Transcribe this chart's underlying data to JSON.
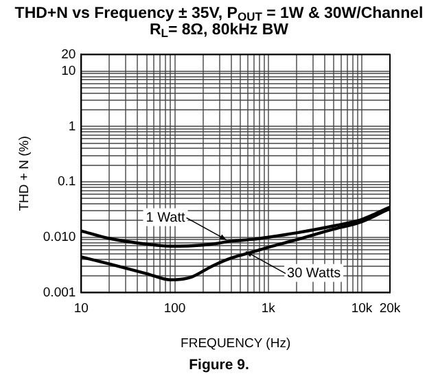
{
  "chart_data": {
    "type": "line",
    "title": "THD+N vs Frequency ± 35V, P$_{OUT}$ = 1W & 30W/Channel",
    "subtitle": "R$_{L}$= 8Ω, 80kHz BW",
    "xlabel": "FREQUENCY (Hz)",
    "ylabel": "THD + N (%)",
    "log": "xy",
    "grid": true,
    "legend": false,
    "marker": "none",
    "line_style": "solid",
    "x": [
      10,
      20,
      50,
      91,
      150,
      250,
      400,
      700,
      1000,
      2000,
      5000,
      10000,
      20000
    ],
    "series": [
      {
        "color": "#000000",
        "values": [
          0.013,
          0.0095,
          0.0075,
          0.0069,
          0.007,
          0.0075,
          0.0085,
          0.0092,
          0.01,
          0.012,
          0.016,
          0.021,
          0.035
        ]
      },
      {
        "color": "#000000",
        "values": [
          0.0044,
          0.0033,
          0.0022,
          0.0017,
          0.0019,
          0.003,
          0.0042,
          0.0055,
          0.0066,
          0.009,
          0.014,
          0.019,
          0.033
        ]
      }
    ],
    "xlim": [
      10,
      20000
    ],
    "ylim": [
      0.001,
      20
    ],
    "xticks": [
      10,
      {
        "value": 20,
        "label": null
      },
      {
        "value": 30,
        "label": null
      },
      {
        "value": 40,
        "label": null
      },
      {
        "value": 50,
        "label": null
      },
      {
        "value": 60,
        "label": null
      },
      {
        "value": 70,
        "label": null
      },
      {
        "value": 80,
        "label": null
      },
      {
        "value": 90,
        "label": null
      },
      100,
      {
        "value": 200,
        "label": null
      },
      {
        "value": 300,
        "label": null
      },
      {
        "value": 400,
        "label": null
      },
      {
        "value": 500,
        "label": null
      },
      {
        "value": 600,
        "label": null
      },
      {
        "value": 700,
        "label": null
      },
      {
        "value": 800,
        "label": null
      },
      {
        "value": 900,
        "label": null
      },
      {
        "value": 1000,
        "label": "1k"
      },
      {
        "value": 2000,
        "label": null
      },
      {
        "value": 3000,
        "label": null
      },
      {
        "value": 4000,
        "label": null
      },
      {
        "value": 5000,
        "label": null
      },
      {
        "value": 6000,
        "label": null
      },
      {
        "value": 7000,
        "label": null
      },
      {
        "value": 8000,
        "label": null
      },
      {
        "value": 9000,
        "label": null
      },
      {
        "value": 10000,
        "label": "10k"
      },
      {
        "value": 20000,
        "label": "20k"
      }
    ],
    "yticks": [
      0.001,
      {
        "value": 0.002,
        "label": null
      },
      {
        "value": 0.003,
        "label": null
      },
      {
        "value": 0.004,
        "label": null
      },
      {
        "value": 0.005,
        "label": null
      },
      {
        "value": 0.006,
        "label": null
      },
      {
        "value": 0.007,
        "label": null
      },
      {
        "value": 0.008,
        "label": null
      },
      {
        "value": 0.009,
        "label": null
      },
      {
        "value": 0.01,
        "label": "0.010"
      },
      {
        "value": 0.02,
        "label": null
      },
      {
        "value": 0.03,
        "label": null
      },
      {
        "value": 0.04,
        "label": null
      },
      {
        "value": 0.05,
        "label": null
      },
      {
        "value": 0.06,
        "label": null
      },
      {
        "value": 0.07,
        "label": null
      },
      {
        "value": 0.08,
        "label": null
      },
      {
        "value": 0.09,
        "label": null
      },
      0.1,
      {
        "value": 0.2,
        "label": null
      },
      {
        "value": 0.3,
        "label": null
      },
      {
        "value": 0.4,
        "label": null
      },
      {
        "value": 0.5,
        "label": null
      },
      {
        "value": 0.6,
        "label": null
      },
      {
        "value": 0.7,
        "label": null
      },
      {
        "value": 0.8,
        "label": null
      },
      {
        "value": 0.9,
        "label": null
      },
      1,
      {
        "value": 2,
        "label": null
      },
      {
        "value": 3,
        "label": null
      },
      {
        "value": 4,
        "label": null
      },
      {
        "value": 5,
        "label": null
      },
      {
        "value": 6,
        "label": null
      },
      {
        "value": 7,
        "label": null
      },
      {
        "value": 8,
        "label": null
      },
      {
        "value": 9,
        "label": null
      },
      10,
      20
    ],
    "annotations": [
      {
        "text": "1 Watt",
        "x": 355,
        "y": 0.009
      },
      {
        "text": "30 Watts",
        "x": 575,
        "y": 0.0055
      },
      "Figure 9."
    ]
  }
}
